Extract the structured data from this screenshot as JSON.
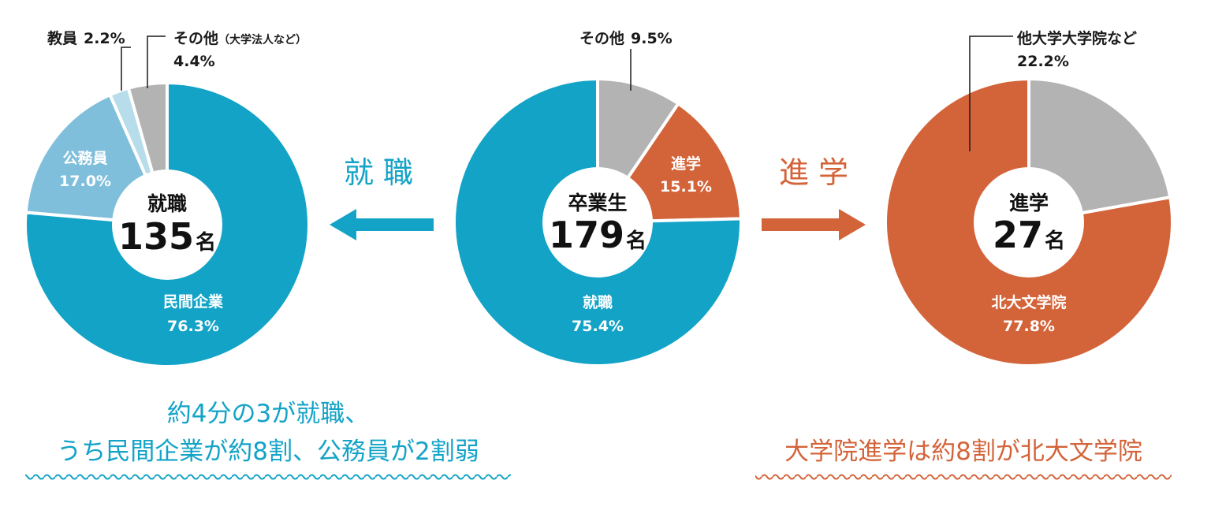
{
  "colors": {
    "blue": "#12a3c7",
    "light_blue": "#7fbfdb",
    "pale_blue": "#b7dcea",
    "gray": "#b3b3b3",
    "orange": "#d3643a",
    "dark": "#1a1a1a"
  },
  "chart_data": [
    {
      "type": "pie",
      "id": "graduates",
      "center": {
        "title": "卒業生",
        "number": "179",
        "unit": "名"
      },
      "slices": [
        {
          "label": "その他",
          "value": 9.5,
          "value_text": "9.5%",
          "color": "#b3b3b3"
        },
        {
          "label": "進学",
          "value": 15.1,
          "value_text": "15.1%",
          "color": "#d3643a"
        },
        {
          "label": "就職",
          "value": 75.4,
          "value_text": "75.4%",
          "color": "#12a3c7"
        }
      ]
    },
    {
      "type": "pie",
      "id": "employment",
      "center": {
        "title": "就職",
        "number": "135",
        "unit": "名"
      },
      "slices": [
        {
          "label": "民間企業",
          "value": 76.3,
          "value_text": "76.3%",
          "color": "#12a3c7"
        },
        {
          "label": "公務員",
          "value": 17.0,
          "value_text": "17.0%",
          "color": "#7fbfdb"
        },
        {
          "label": "教員",
          "value": 2.2,
          "value_text": "2.2%",
          "color": "#b7dcea"
        },
        {
          "label": "その他",
          "note": "（大学法人など）",
          "value": 4.4,
          "value_text": "4.4%",
          "color": "#b3b3b3"
        }
      ]
    },
    {
      "type": "pie",
      "id": "further_study",
      "center": {
        "title": "進学",
        "number": "27",
        "unit": "名"
      },
      "slices": [
        {
          "label": "北大文学院",
          "value": 77.8,
          "value_text": "77.8%",
          "color": "#d3643a"
        },
        {
          "label": "他大学大学院など",
          "value": 22.2,
          "value_text": "22.2%",
          "color": "#b3b3b3"
        }
      ]
    }
  ],
  "flows": {
    "employment_label": "就 職",
    "study_label": "進 学"
  },
  "summaries": {
    "employment_line1": "約4分の3が就職、",
    "employment_line2": "うち民間企業が約8割、公務員が2割弱",
    "study_line": "大学院進学は約8割が北大文学院"
  }
}
